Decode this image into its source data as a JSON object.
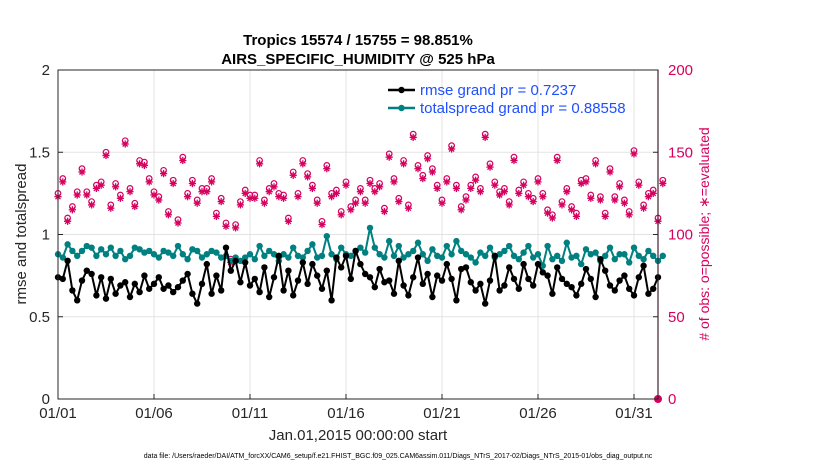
{
  "chart_data": {
    "type": "line",
    "title_line1": "Tropics 15574 / 15755 = 98.851%",
    "title_line2": "AIRS_SPECIFIC_HUMIDITY @ 525 hPa",
    "xlabel": "Jan.01,2015 00:00:00 start",
    "ylabel_left": "rmse and totalspread",
    "ylabel_right": "# of obs: o=possible; ∗=evaluated",
    "ylim_left": [
      0,
      2
    ],
    "ylim_right": [
      0,
      200
    ],
    "xlim": [
      0,
      31.25
    ],
    "x_ticks": [
      0,
      5,
      10,
      15,
      20,
      25,
      30
    ],
    "x_tick_labels": [
      "01/01",
      "01/06",
      "01/11",
      "01/16",
      "01/21",
      "01/26",
      "01/31"
    ],
    "y_ticks_left": [
      0,
      0.5,
      1,
      1.5,
      2
    ],
    "y_tick_labels_left": [
      "0",
      "0.5",
      "1",
      "1.5",
      "2"
    ],
    "y_ticks_right": [
      0,
      50,
      100,
      150,
      200
    ],
    "y_tick_labels_right": [
      "0",
      "50",
      "100",
      "150",
      "200"
    ],
    "grid": true,
    "legend_position": "top-right",
    "series": [
      {
        "name": "rmse grand pr = 0.7237",
        "color": "#000000",
        "marker": "filled-circle",
        "values": [
          0.74,
          0.73,
          0.84,
          0.66,
          0.6,
          0.72,
          0.78,
          0.76,
          0.63,
          0.74,
          0.61,
          0.73,
          0.64,
          0.69,
          0.71,
          0.62,
          0.7,
          0.65,
          0.75,
          0.67,
          0.7,
          0.74,
          0.67,
          0.69,
          0.65,
          0.68,
          0.72,
          0.76,
          0.64,
          0.58,
          0.7,
          0.82,
          0.64,
          0.75,
          0.66,
          0.92,
          0.78,
          0.84,
          0.71,
          0.83,
          0.69,
          0.73,
          0.65,
          0.8,
          0.62,
          0.74,
          0.87,
          0.66,
          0.78,
          0.63,
          0.72,
          0.83,
          0.7,
          0.82,
          0.75,
          0.67,
          0.78,
          0.6,
          0.86,
          0.8,
          0.87,
          0.73,
          0.9,
          0.82,
          0.76,
          0.74,
          0.68,
          0.79,
          0.71,
          0.72,
          0.64,
          0.84,
          0.69,
          0.63,
          0.74,
          0.86,
          0.7,
          0.76,
          0.62,
          0.75,
          0.72,
          0.82,
          0.73,
          0.6,
          0.79,
          0.8,
          0.71,
          0.66,
          0.7,
          0.58,
          0.72,
          0.87,
          0.66,
          0.69,
          0.8,
          0.73,
          0.67,
          0.82,
          0.73,
          0.69,
          0.82,
          0.77,
          0.75,
          0.64,
          0.8,
          0.73,
          0.7,
          0.68,
          0.63,
          0.7,
          0.79,
          0.73,
          0.62,
          0.85,
          0.78,
          0.69,
          0.66,
          0.72,
          0.75,
          0.67,
          0.63,
          0.74,
          0.81,
          0.64,
          0.67,
          0.74
        ],
        "x_start": 0,
        "x_step": 0.25
      },
      {
        "name": "totalspread grand pr = 0.88558",
        "color": "#008080",
        "marker": "filled-circle",
        "values": [
          0.88,
          0.86,
          0.94,
          0.9,
          0.87,
          0.9,
          0.93,
          0.92,
          0.87,
          0.91,
          0.88,
          0.92,
          0.87,
          0.9,
          0.85,
          0.87,
          0.92,
          0.91,
          0.89,
          0.9,
          0.88,
          0.86,
          0.9,
          0.89,
          0.87,
          0.93,
          0.88,
          0.85,
          0.91,
          0.9,
          0.86,
          0.88,
          0.9,
          0.89,
          0.86,
          0.87,
          0.84,
          0.86,
          0.84,
          0.86,
          0.88,
          0.85,
          0.93,
          0.87,
          0.9,
          0.88,
          0.84,
          0.88,
          0.86,
          0.92,
          0.87,
          0.86,
          0.9,
          0.94,
          0.86,
          0.87,
          0.99,
          0.88,
          0.85,
          0.92,
          0.88,
          0.87,
          0.9,
          0.92,
          0.89,
          1.04,
          0.92,
          0.88,
          0.86,
          0.96,
          0.87,
          0.93,
          0.86,
          0.88,
          0.9,
          0.95,
          0.88,
          0.84,
          0.91,
          0.87,
          0.86,
          0.93,
          0.88,
          0.96,
          0.9,
          0.88,
          0.86,
          0.83,
          0.89,
          0.87,
          0.92,
          0.86,
          0.88,
          0.9,
          0.93,
          0.87,
          0.85,
          0.89,
          0.93,
          0.86,
          0.88,
          0.81,
          0.93,
          0.85,
          0.87,
          0.84,
          0.95,
          0.86,
          0.87,
          0.82,
          0.91,
          0.88,
          0.89,
          0.84,
          0.87,
          0.92,
          0.85,
          0.88,
          0.88,
          0.83,
          0.92,
          0.87,
          0.85,
          0.9,
          0.87,
          0.84,
          0.87
        ],
        "x_start": 0,
        "x_step": 0.25
      },
      {
        "name": "obs possible",
        "axis": "right",
        "color": "#d6005f",
        "marker": "open-circle",
        "values": [
          125,
          134,
          110,
          117,
          126,
          140,
          126,
          120,
          130,
          132,
          150,
          118,
          131,
          124,
          157,
          128,
          119,
          145,
          144,
          134,
          126,
          123,
          139,
          114,
          133,
          109,
          147,
          125,
          133,
          121,
          128,
          128,
          134,
          113,
          122,
          107,
          85,
          106,
          120,
          127,
          124,
          124,
          145,
          121,
          128,
          131,
          125,
          124,
          110,
          138,
          125,
          145,
          137,
          130,
          121,
          108,
          142,
          125,
          127,
          114,
          132,
          117,
          121,
          128,
          121,
          133,
          128,
          131,
          116,
          149,
          134,
          122,
          145,
          118,
          161,
          142,
          136,
          148,
          140,
          130,
          121,
          134,
          154,
          130,
          117,
          123,
          130,
          135,
          128,
          161,
          143,
          132,
          126,
          128,
          120,
          147,
          127,
          132,
          125,
          122,
          134,
          125,
          115,
          112,
          147,
          120,
          128,
          117,
          113,
          133,
          134,
          124,
          145,
          123,
          113,
          140,
          123,
          131,
          121,
          114,
          151,
          132,
          118,
          125,
          127,
          110,
          133
        ],
        "x_start": 0,
        "x_step": 0.25
      },
      {
        "name": "obs evaluated",
        "axis": "right",
        "color": "#d6005f",
        "marker": "asterisk",
        "values": [
          123,
          132,
          108,
          115,
          124,
          138,
          124,
          118,
          128,
          130,
          148,
          116,
          129,
          122,
          155,
          126,
          117,
          143,
          142,
          132,
          124,
          121,
          137,
          112,
          131,
          107,
          145,
          123,
          131,
          119,
          126,
          126,
          132,
          111,
          120,
          105,
          83,
          104,
          118,
          125,
          122,
          122,
          143,
          119,
          126,
          129,
          123,
          122,
          108,
          136,
          123,
          143,
          135,
          128,
          119,
          106,
          140,
          123,
          125,
          112,
          130,
          115,
          119,
          126,
          119,
          131,
          126,
          129,
          114,
          147,
          132,
          120,
          143,
          116,
          159,
          140,
          134,
          146,
          138,
          128,
          119,
          132,
          152,
          128,
          115,
          121,
          128,
          133,
          126,
          159,
          141,
          130,
          124,
          126,
          118,
          145,
          125,
          130,
          123,
          120,
          132,
          123,
          113,
          110,
          145,
          118,
          126,
          115,
          111,
          131,
          132,
          122,
          143,
          121,
          111,
          138,
          121,
          129,
          119,
          112,
          149,
          130,
          116,
          123,
          125,
          108,
          131
        ],
        "x_start": 0,
        "x_step": 0.25
      }
    ],
    "footnote": "data file: /Users/raeder/DAI/ATM_forcXX/CAM6_setup/f.e21.FHIST_BGC.f09_025.CAM6assim.011/Diags_NTrS_2017-02/Diags_NTrS_2015-01/obs_diag_output.nc"
  }
}
